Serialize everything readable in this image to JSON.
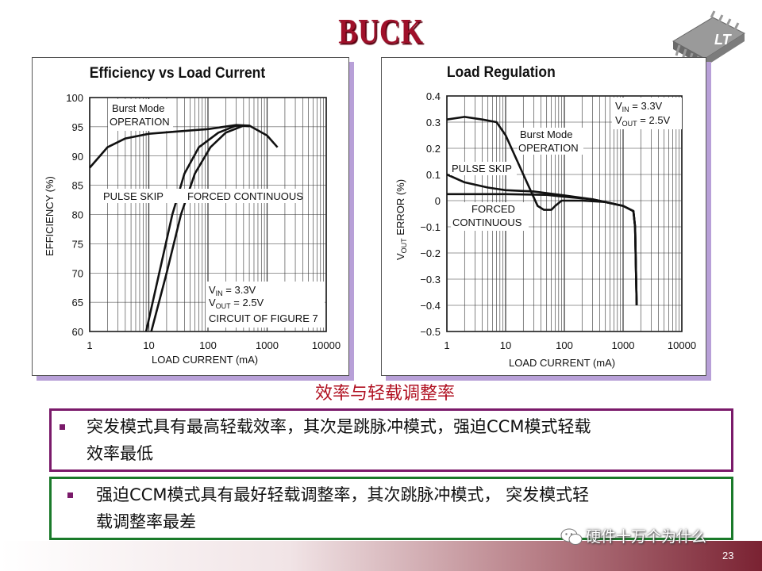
{
  "slide": {
    "title": "BUCK",
    "caption": "效率与轻载调整率",
    "bullets": [
      {
        "line1": "突发模式具有最高轻载效率，其次是跳脉冲模式，强迫CCM模式轻载",
        "line2": "效率最低"
      },
      {
        "line1": "强迫CCM模式具有最好轻载调整率，其次跳脉冲模式， 突发模式轻",
        "line2": "载调整率最差"
      }
    ],
    "watermark": "硬件十万个为什么",
    "page_number": "23",
    "logo_icon": "linear-tech-chip-logo",
    "watermark_icon": "wechat-icon"
  },
  "chart_data": [
    {
      "type": "line",
      "title": "Efficiency vs Load Current",
      "xlabel": "LOAD CURRENT (mA)",
      "ylabel": "EFFICIENCY (%)",
      "xscale": "log",
      "xlim": [
        1,
        10000
      ],
      "ylim": [
        60,
        100
      ],
      "xticks": [
        "1",
        "10",
        "100",
        "1000",
        "10000"
      ],
      "yticks": [
        "60",
        "65",
        "70",
        "75",
        "80",
        "85",
        "90",
        "95",
        "100"
      ],
      "grid": true,
      "labels": {
        "burst1": "Burst Mode",
        "burst2": "OPERATION",
        "pulse": "PULSE SKIP",
        "forced": "FORCED CONTINUOUS",
        "cond1": "V",
        "cond1sub": "IN",
        "cond1val": " = 3.3V",
        "cond2": "V",
        "cond2sub": "OUT",
        "cond2val": " = 2.5V",
        "cond3": "CIRCUIT OF FIGURE 7"
      },
      "series": [
        {
          "name": "Burst Mode OPERATION",
          "points": [
            [
              1,
              88
            ],
            [
              2,
              91.5
            ],
            [
              4,
              93
            ],
            [
              10,
              93.8
            ],
            [
              30,
              94.2
            ],
            [
              100,
              94.6
            ],
            [
              300,
              95.3
            ],
            [
              500,
              95.2
            ],
            [
              1000,
              93.5
            ],
            [
              1500,
              91.5
            ]
          ]
        },
        {
          "name": "PULSE SKIP",
          "points": [
            [
              9,
              60
            ],
            [
              15,
              70
            ],
            [
              25,
              80
            ],
            [
              40,
              87
            ],
            [
              70,
              91.5
            ],
            [
              150,
              94
            ],
            [
              300,
              95.2
            ],
            [
              500,
              95.1
            ]
          ]
        },
        {
          "name": "FORCED CONTINUOUS",
          "points": [
            [
              11,
              60
            ],
            [
              20,
              70
            ],
            [
              35,
              80
            ],
            [
              60,
              87
            ],
            [
              110,
              91.5
            ],
            [
              200,
              94
            ],
            [
              400,
              95.2
            ],
            [
              500,
              95.1
            ]
          ]
        }
      ]
    },
    {
      "type": "line",
      "title": "Load Regulation",
      "xlabel": "LOAD CURRENT (mA)",
      "ylabel": "V",
      "ylabel_sub": "OUT",
      "ylabel_rest": " ERROR (%)",
      "xscale": "log",
      "xlim": [
        1,
        10000
      ],
      "ylim": [
        -0.5,
        0.4
      ],
      "xticks": [
        "1",
        "10",
        "100",
        "1000",
        "10000"
      ],
      "yticks": [
        "0.4",
        "0.3",
        "0.2",
        "0.1",
        "0",
        "−0.1",
        "−0.2",
        "−0.3",
        "−0.4",
        "−0.5"
      ],
      "grid": true,
      "labels": {
        "burst1": "Burst Mode",
        "burst2": "OPERATION",
        "pulse": "PULSE SKIP",
        "forced1": "FORCED",
        "forced2": "CONTINUOUS",
        "cond1": "V",
        "cond1sub": "IN",
        "cond1val": " = 3.3V",
        "cond2": "V",
        "cond2sub": "OUT",
        "cond2val": " = 2.5V"
      },
      "series": [
        {
          "name": "Burst Mode OPERATION",
          "points": [
            [
              1,
              0.31
            ],
            [
              2,
              0.32
            ],
            [
              4,
              0.31
            ],
            [
              7,
              0.3
            ],
            [
              10,
              0.25
            ],
            [
              20,
              0.1
            ],
            [
              35,
              -0.02
            ],
            [
              45,
              -0.035
            ],
            [
              60,
              -0.035
            ],
            [
              70,
              -0.02
            ],
            [
              90,
              0.0
            ],
            [
              200,
              0.0
            ],
            [
              500,
              -0.005
            ],
            [
              1000,
              -0.02
            ],
            [
              1500,
              -0.04
            ],
            [
              1600,
              -0.1
            ],
            [
              1700,
              -0.4
            ]
          ]
        },
        {
          "name": "PULSE SKIP",
          "points": [
            [
              1,
              0.1
            ],
            [
              2,
              0.07
            ],
            [
              5,
              0.05
            ],
            [
              10,
              0.04
            ],
            [
              30,
              0.035
            ],
            [
              100,
              0.02
            ],
            [
              300,
              0.005
            ],
            [
              1000,
              -0.02
            ],
            [
              1500,
              -0.04
            ],
            [
              1600,
              -0.1
            ],
            [
              1700,
              -0.4
            ]
          ]
        },
        {
          "name": "FORCED CONTINUOUS",
          "points": [
            [
              1,
              0.025
            ],
            [
              10,
              0.025
            ],
            [
              50,
              0.022
            ],
            [
              100,
              0.015
            ],
            [
              300,
              0.005
            ],
            [
              1000,
              -0.02
            ],
            [
              1500,
              -0.04
            ],
            [
              1600,
              -0.1
            ],
            [
              1700,
              -0.4
            ]
          ]
        }
      ]
    }
  ]
}
